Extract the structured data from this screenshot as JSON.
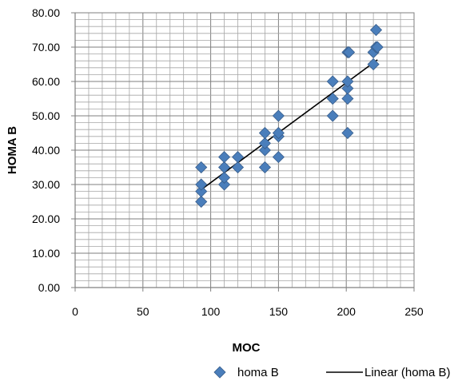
{
  "chart_data": {
    "type": "scatter",
    "title": "",
    "xlabel": "MOC",
    "ylabel": "HOMA B",
    "xlim": [
      0,
      250
    ],
    "ylim": [
      0,
      80
    ],
    "x_ticks": [
      "0",
      "50",
      "100",
      "150",
      "200",
      "250"
    ],
    "y_ticks": [
      "0.00",
      "10.00",
      "20.00",
      "30.00",
      "40.00",
      "50.00",
      "60.00",
      "70.00",
      "80.00"
    ],
    "grid": true,
    "legend_position": "bottom",
    "series": [
      {
        "name": "homa B",
        "marker": "diamond",
        "color": "#4a7ebb",
        "points": [
          [
            93,
            25
          ],
          [
            93,
            28
          ],
          [
            93,
            30
          ],
          [
            93,
            35
          ],
          [
            110,
            30
          ],
          [
            110,
            32
          ],
          [
            110,
            35
          ],
          [
            110,
            38
          ],
          [
            120,
            35
          ],
          [
            120,
            38
          ],
          [
            140,
            35
          ],
          [
            140,
            40
          ],
          [
            140,
            42
          ],
          [
            140,
            45
          ],
          [
            150,
            38
          ],
          [
            150,
            44
          ],
          [
            150,
            45
          ],
          [
            150,
            50
          ],
          [
            190,
            50
          ],
          [
            190,
            55
          ],
          [
            190,
            60
          ],
          [
            201,
            45
          ],
          [
            201,
            55
          ],
          [
            201,
            58
          ],
          [
            201,
            60
          ],
          [
            201,
            68.5
          ],
          [
            202,
            68.5
          ],
          [
            220,
            65
          ],
          [
            220,
            68.5
          ],
          [
            222,
            70
          ],
          [
            222,
            75
          ],
          [
            223,
            70
          ]
        ]
      },
      {
        "name": "Linear (homa B)",
        "type": "line",
        "color": "#000000",
        "x": [
          93,
          223
        ],
        "y": [
          28.5,
          66.3
        ]
      }
    ]
  }
}
